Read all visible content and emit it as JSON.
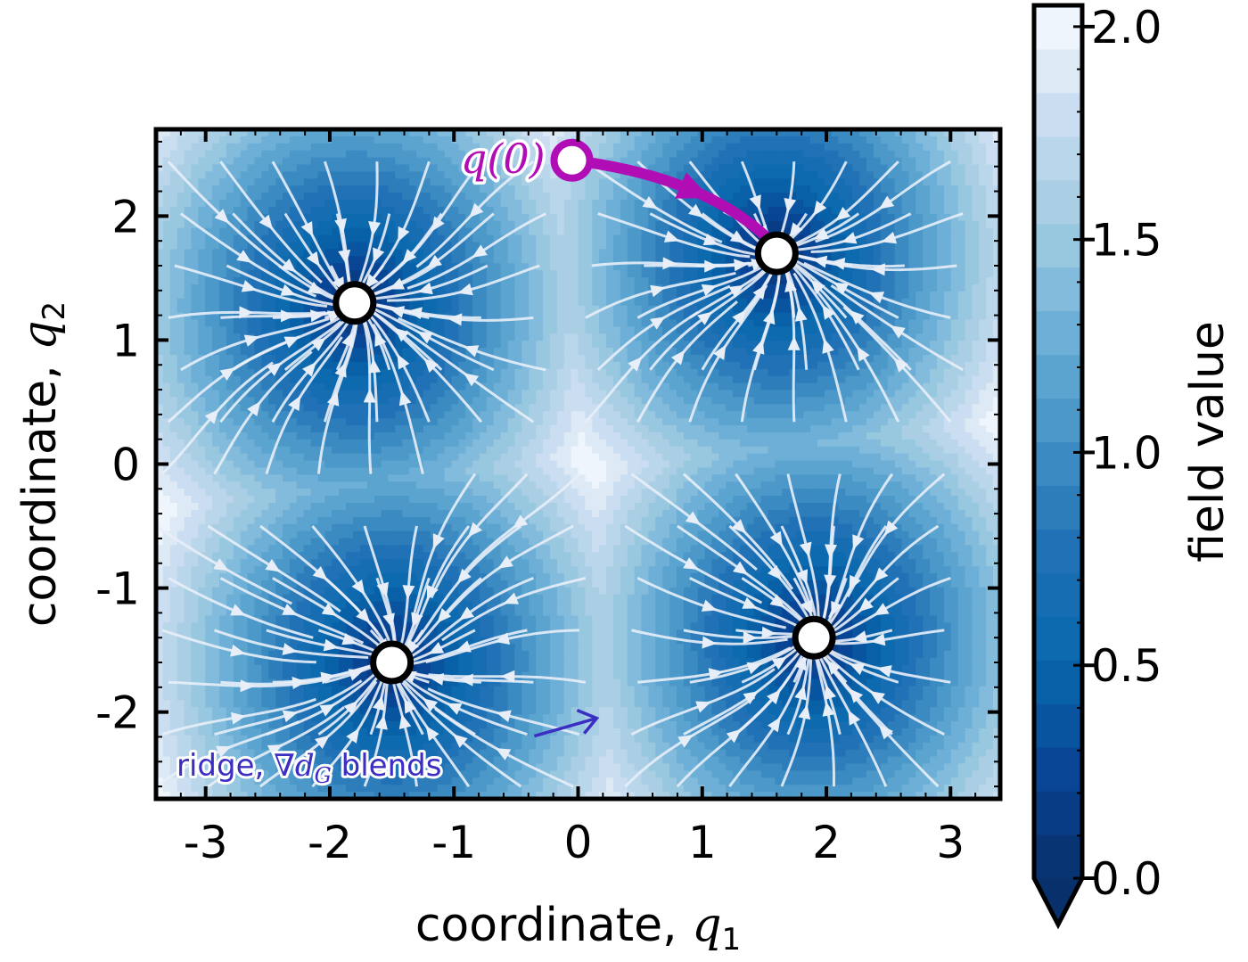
{
  "chart_data": {
    "type": "heatmap",
    "title": "",
    "xlabel": {
      "text": "coordinate, ",
      "symbol": "q",
      "subscript": "1"
    },
    "ylabel": {
      "text": "coordinate, ",
      "symbol": "q",
      "subscript": "2"
    },
    "xlim": [
      -3.4,
      3.4
    ],
    "ylim": [
      -2.7,
      2.7
    ],
    "xticks": [
      -3,
      -2,
      -1,
      0,
      1,
      2,
      3
    ],
    "yticks": [
      -2,
      -1,
      0,
      1,
      2
    ],
    "xtick_labels": [
      "-3",
      "-2",
      "-1",
      "0",
      "1",
      "2",
      "3"
    ],
    "ytick_labels": [
      "-2",
      "-1",
      "0",
      "1",
      "2"
    ],
    "minima": [
      {
        "x": -1.8,
        "y": 1.3
      },
      {
        "x": 1.6,
        "y": 1.7
      },
      {
        "x": -1.5,
        "y": -1.6
      },
      {
        "x": 1.9,
        "y": -1.4
      }
    ],
    "trajectory": {
      "label": "q(0)",
      "start": {
        "x": -0.05,
        "y": 2.45
      },
      "end": {
        "x": 1.6,
        "y": 1.75
      },
      "color": "#b10db5"
    },
    "annotation": {
      "text_before": "ridge, ",
      "symbol": "∇d",
      "subscript": "G",
      "text_after": " blends",
      "color": "#3b2ec2",
      "arrow_tip": {
        "x": 0.15,
        "y": -2.05
      }
    },
    "colorbar": {
      "label": "field value",
      "min": 0.0,
      "max": 2.05,
      "ticks": [
        0.0,
        0.5,
        1.0,
        1.5,
        2.0
      ],
      "tick_labels": [
        "0.0",
        "0.5",
        "1.0",
        "1.5",
        "2.0"
      ],
      "levels": 20,
      "extend": "min",
      "colormap": "Blues_r"
    },
    "streamline_color": "#e8eef8",
    "minimum_marker": {
      "fill": "#ffffff",
      "edge": "#000000"
    }
  }
}
